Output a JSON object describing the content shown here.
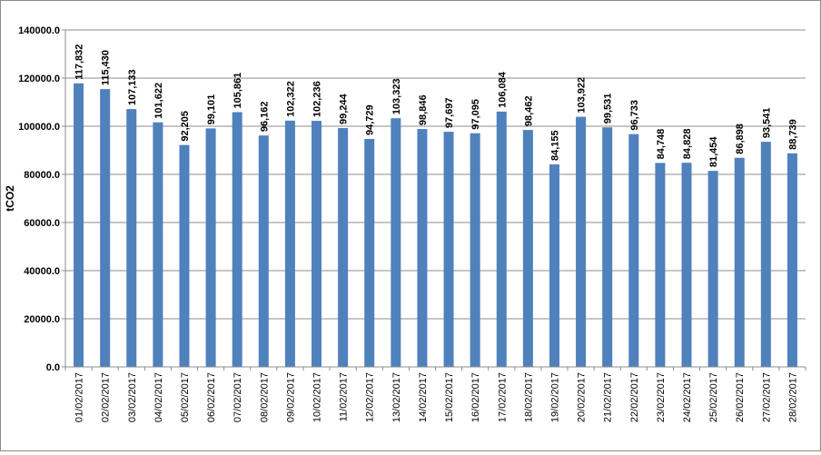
{
  "chart_data": {
    "type": "bar",
    "title": "",
    "xlabel": "",
    "ylabel": "tCO2",
    "ylim": [
      0,
      140000
    ],
    "yticks": [
      0,
      20000,
      40000,
      60000,
      80000,
      100000,
      120000,
      140000
    ],
    "ytick_labels": [
      "0.0",
      "20000.0",
      "40000.0",
      "60000.0",
      "80000.0",
      "100000.0",
      "120000.0",
      "140000.0"
    ],
    "grid": true,
    "bar_color": "#4f81bd",
    "categories": [
      "01/02/2017",
      "02/02/2017",
      "03/02/2017",
      "04/02/2017",
      "05/02/2017",
      "06/02/2017",
      "07/02/2017",
      "08/02/2017",
      "09/02/2017",
      "10/02/2017",
      "11/02/2017",
      "12/02/2017",
      "13/02/2017",
      "14/02/2017",
      "15/02/2017",
      "16/02/2017",
      "17/02/2017",
      "18/02/2017",
      "19/02/2017",
      "20/02/2017",
      "21/02/2017",
      "22/02/2017",
      "23/02/2017",
      "24/02/2017",
      "25/02/2017",
      "26/02/2017",
      "27/02/2017",
      "28/02/2017"
    ],
    "values": [
      117832,
      115430,
      107133,
      101622,
      92205,
      99101,
      105861,
      96162,
      102322,
      102236,
      99244,
      94729,
      103323,
      98846,
      97697,
      97095,
      106084,
      98462,
      84155,
      103922,
      99531,
      96733,
      84748,
      84828,
      81454,
      86898,
      93541,
      88739
    ],
    "data_labels": [
      "117,832",
      "115,430",
      "107,133",
      "101,622",
      "92,205",
      "99,101",
      "105,861",
      "96,162",
      "102,322",
      "102,236",
      "99,244",
      "94,729",
      "103,323",
      "98,846",
      "97,697",
      "97,095",
      "106,084",
      "98,462",
      "84,155",
      "103,922",
      "99,531",
      "96,733",
      "84,748",
      "84,828",
      "81,454",
      "86,898",
      "93,541",
      "88,739"
    ]
  }
}
